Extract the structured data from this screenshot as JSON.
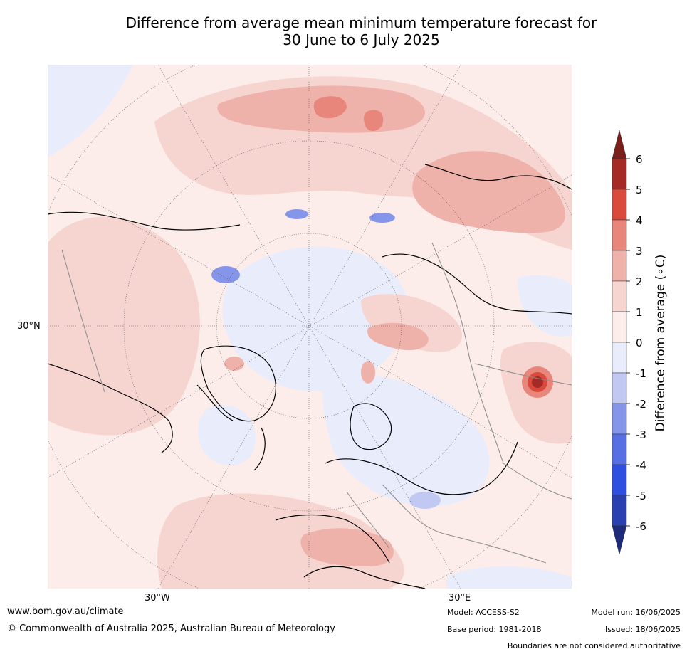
{
  "title_line1": "Difference from average mean minimum temperature forecast for",
  "title_line2": "30 June to 6 July 2025",
  "map": {
    "projection": "north-polar-stereographic",
    "lon_labels": [
      "30°W",
      "30°E"
    ],
    "lat_labels": [
      "30°N"
    ]
  },
  "legend": {
    "label": "Difference from average (∘C)",
    "ticks": [
      "6",
      "5",
      "4",
      "3",
      "2",
      "1",
      "0",
      "-1",
      "-2",
      "-3",
      "-4",
      "-5",
      "-6"
    ],
    "colors": [
      "#7b1f1a",
      "#a52a25",
      "#d94a3d",
      "#e8867b",
      "#efb2aa",
      "#f6d5d1",
      "#fcedea",
      "#e8ecfb",
      "#c1c9f2",
      "#8596ea",
      "#5670e4",
      "#2e4fe0",
      "#2a40b0",
      "#1e2b7a"
    ]
  },
  "footer": {
    "url": "www.bom.gov.au/climate",
    "copyright": "© Commonwealth of Australia 2025, Australian Bureau of Meteorology",
    "model": "Model: ACCESS-S2",
    "base_period": "Base period: 1981-2018",
    "model_run": "Model run: 16/06/2025",
    "issued": "Issued: 18/06/2025",
    "boundaries_note": "Boundaries are not considered authoritative"
  }
}
